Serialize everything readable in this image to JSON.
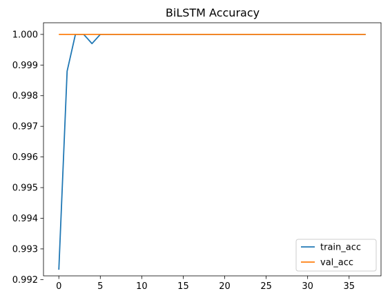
{
  "chart_data": {
    "type": "line",
    "title": "BiLSTM Accuracy",
    "xlabel": "",
    "ylabel": "",
    "xlim": [
      -1.85,
      38.85
    ],
    "ylim": [
      0.99212,
      1.00038
    ],
    "xticks": [
      0,
      5,
      10,
      15,
      20,
      25,
      30,
      35
    ],
    "xtick_labels": [
      "0",
      "5",
      "10",
      "15",
      "20",
      "25",
      "30",
      "35"
    ],
    "yticks": [
      0.992,
      0.993,
      0.994,
      0.995,
      0.996,
      0.997,
      0.998,
      0.999,
      1.0
    ],
    "ytick_labels": [
      "0.992",
      "0.993",
      "0.994",
      "0.995",
      "0.996",
      "0.997",
      "0.998",
      "0.999",
      "1.000"
    ],
    "grid": false,
    "legend_position": "bottom-right",
    "series": [
      {
        "name": "train_acc",
        "color": "#1f77b4",
        "x": [
          0,
          1,
          2,
          3,
          4,
          5,
          6,
          7,
          8,
          9,
          10,
          11,
          12,
          13,
          14,
          15,
          16,
          17,
          18,
          19,
          20,
          21,
          22,
          23,
          24,
          25,
          26,
          27,
          28,
          29,
          30,
          31,
          32,
          33,
          34,
          35,
          36,
          37
        ],
        "y": [
          0.99232,
          0.9988,
          1.0,
          1.0,
          0.9997,
          1.0,
          1.0,
          1.0,
          1.0,
          1.0,
          1.0,
          1.0,
          1.0,
          1.0,
          1.0,
          1.0,
          1.0,
          1.0,
          1.0,
          1.0,
          1.0,
          1.0,
          1.0,
          1.0,
          1.0,
          1.0,
          1.0,
          1.0,
          1.0,
          1.0,
          1.0,
          1.0,
          1.0,
          1.0,
          1.0,
          1.0,
          1.0,
          1.0
        ]
      },
      {
        "name": "val_acc",
        "color": "#ff7f0e",
        "x": [
          0,
          1,
          2,
          3,
          4,
          5,
          6,
          7,
          8,
          9,
          10,
          11,
          12,
          13,
          14,
          15,
          16,
          17,
          18,
          19,
          20,
          21,
          22,
          23,
          24,
          25,
          26,
          27,
          28,
          29,
          30,
          31,
          32,
          33,
          34,
          35,
          36,
          37
        ],
        "y": [
          1.0,
          1.0,
          1.0,
          1.0,
          1.0,
          1.0,
          1.0,
          1.0,
          1.0,
          1.0,
          1.0,
          1.0,
          1.0,
          1.0,
          1.0,
          1.0,
          1.0,
          1.0,
          1.0,
          1.0,
          1.0,
          1.0,
          1.0,
          1.0,
          1.0,
          1.0,
          1.0,
          1.0,
          1.0,
          1.0,
          1.0,
          1.0,
          1.0,
          1.0,
          1.0,
          1.0,
          1.0,
          1.0
        ]
      }
    ]
  }
}
